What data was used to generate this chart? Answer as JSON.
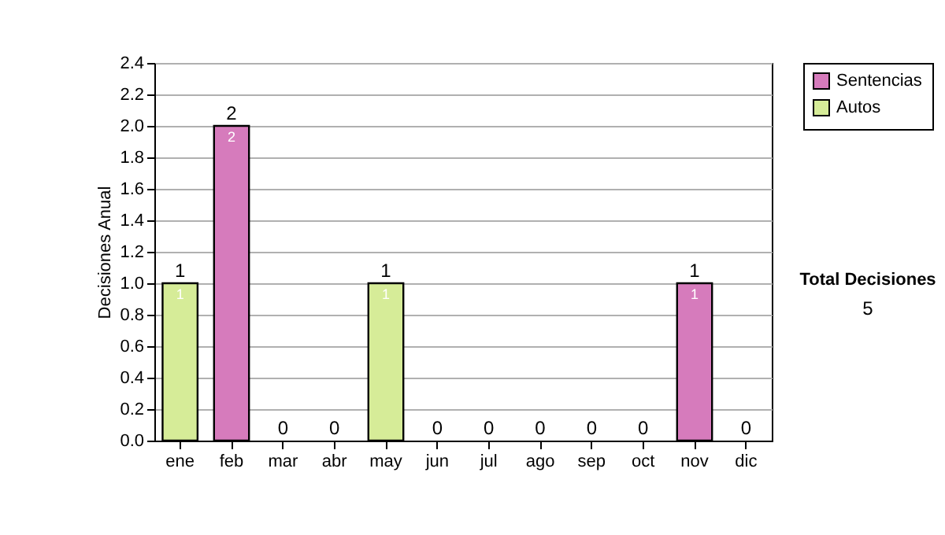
{
  "chart_data": {
    "type": "bar",
    "stacked": true,
    "ylabel": "Decisiones Anual",
    "categories": [
      "ene",
      "feb",
      "mar",
      "abr",
      "may",
      "jun",
      "jul",
      "ago",
      "sep",
      "oct",
      "nov",
      "dic"
    ],
    "series": [
      {
        "name": "Sentencias",
        "color": "#d67bbc",
        "values": [
          0,
          2,
          0,
          0,
          0,
          0,
          0,
          0,
          0,
          0,
          1,
          0
        ],
        "value_labels": [
          null,
          "2",
          null,
          null,
          null,
          null,
          null,
          null,
          null,
          null,
          "1",
          null
        ]
      },
      {
        "name": "Autos",
        "color": "#d6ec98",
        "values": [
          1,
          0,
          0,
          0,
          1,
          0,
          0,
          0,
          0,
          0,
          0,
          0
        ],
        "value_labels": [
          "1",
          null,
          null,
          null,
          "1",
          null,
          null,
          null,
          null,
          null,
          null,
          null
        ]
      }
    ],
    "totals": [
      "1",
      "2",
      "0",
      "0",
      "1",
      "0",
      "0",
      "0",
      "0",
      "0",
      "1",
      "0"
    ],
    "ylim": [
      0,
      2.4
    ],
    "yticks": [
      {
        "value": 0,
        "label": "0.0"
      },
      0.2,
      0.4,
      0.6,
      0.8,
      {
        "value": 1,
        "label": "1.0"
      },
      1.2,
      1.4,
      1.6,
      1.8,
      {
        "value": 2,
        "label": "2.0"
      },
      2.2,
      2.4
    ],
    "grid": "y",
    "legend": "right",
    "annotations": [
      "Total Decisiones",
      "5"
    ]
  }
}
